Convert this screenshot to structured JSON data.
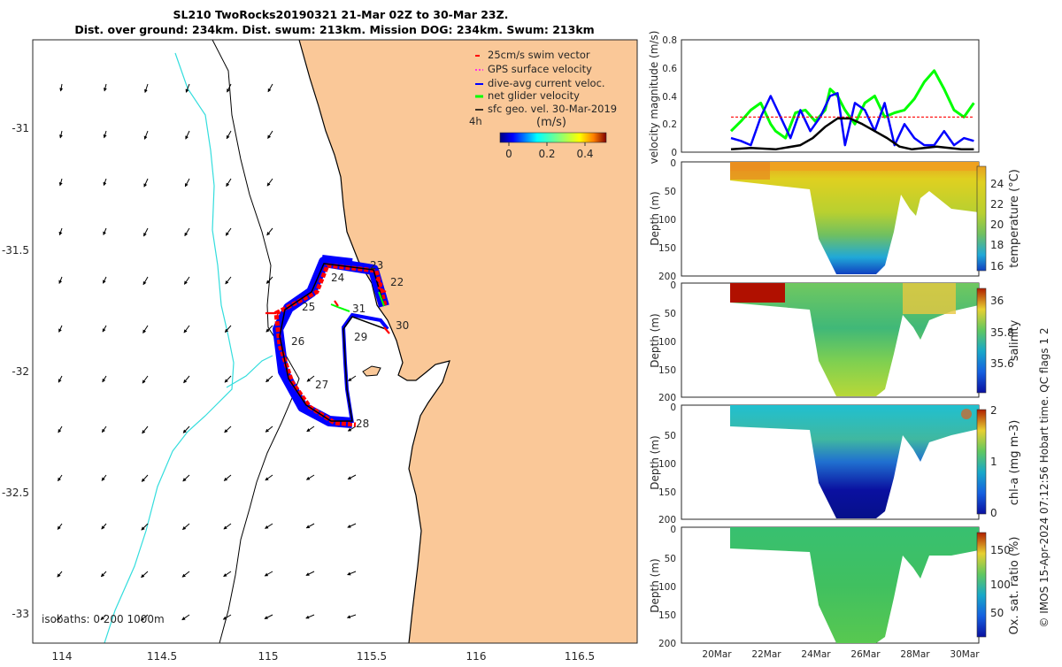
{
  "title": {
    "line1": "SL210 TwoRocks20190321 21-Mar 02Z to 30-Mar 23Z.",
    "line2": "Dist. over ground: 234km. Dist. swum: 213km. Mission DOG: 234km. Swum: 213km"
  },
  "colors": {
    "swim": "#ff0000",
    "gps": "#ff00ff",
    "dive_avg": "#0000ff",
    "net": "#00ff00",
    "geo": "#000000",
    "land": "#fac898",
    "rivers": "#33dddd",
    "track_band": "#0000ff"
  },
  "map": {
    "xticks": [
      "114",
      "114.5",
      "115",
      "115.5",
      "116",
      "116.5"
    ],
    "yticks": [
      "-31",
      "-31.5",
      "-32",
      "-32.5",
      "-33"
    ],
    "legend": [
      {
        "label": "25cm/s swim vector",
        "color": "#ff0000",
        "style": "short"
      },
      {
        "label": "GPS surface velocity",
        "color": "#ff00ff",
        "style": "dash"
      },
      {
        "label": "dive-avg current veloc.",
        "color": "#0000ff",
        "style": "line"
      },
      {
        "label": "net glider velocity",
        "color": "#00ff00",
        "style": "line"
      },
      {
        "label": "sfc geo. vel. 30-Mar-2019",
        "color": "#000000",
        "style": "arrow"
      }
    ],
    "legend_tag": "4h",
    "colorbar_label": "(m/s)",
    "colorbar_ticks": [
      "0",
      "0.2",
      "0.4"
    ],
    "day_labels": [
      "23",
      "24",
      "22",
      "25",
      "31",
      "30",
      "29",
      "26",
      "27",
      "28"
    ],
    "isobaths_label": "isobaths: 0   200 1000m"
  },
  "velocity_panel": {
    "ylabel": "velocity magnitude (m/s)",
    "yticks": [
      "0",
      "0.2",
      "0.4",
      "0.6",
      "0.8"
    ],
    "ylim": [
      0,
      0.8
    ]
  },
  "depth_panels": [
    {
      "name": "temperature",
      "ylabel": "Depth (m)",
      "cbar_label": "temperature (°C)",
      "cbar_ticks": [
        "16",
        "18",
        "20",
        "22",
        "24"
      ],
      "yticks": [
        "0",
        "50",
        "100",
        "150",
        "200"
      ]
    },
    {
      "name": "salinity",
      "ylabel": "Depth (m)",
      "cbar_label": "salinity",
      "cbar_ticks": [
        "35.6",
        "35.8",
        "36"
      ],
      "yticks": [
        "0",
        "50",
        "100",
        "150",
        "200"
      ]
    },
    {
      "name": "chl-a",
      "ylabel": "Depth (m)",
      "cbar_label": "chl-a (mg m-3)",
      "cbar_ticks": [
        "0",
        "1",
        "2"
      ],
      "yticks": [
        "0",
        "50",
        "100",
        "150",
        "200"
      ]
    },
    {
      "name": "oxygen",
      "ylabel": "Depth (m)",
      "cbar_label": "Ox. sat. ratio (%)",
      "cbar_ticks": [
        "50",
        "100",
        "150"
      ],
      "yticks": [
        "0",
        "50",
        "100",
        "150",
        "200"
      ]
    }
  ],
  "time_ticks": [
    "20Mar",
    "22Mar",
    "24Mar",
    "26Mar",
    "28Mar",
    "30Mar"
  ],
  "footer": "© IMOS 15-Apr-2024 07:12:56 Hobart time. QC flags 1  2",
  "chart_data": [
    {
      "type": "line",
      "title": "",
      "ylabel": "velocity magnitude (m/s)",
      "ylim": [
        0,
        0.8
      ],
      "x_units": "day of March 2019",
      "xlim": [
        19.2,
        31.2
      ],
      "x_tick_labels": [
        "20Mar",
        "22Mar",
        "24Mar",
        "26Mar",
        "28Mar",
        "30Mar"
      ],
      "series": [
        {
          "name": "net glider velocity",
          "color": "#00ff00",
          "x": [
            21.2,
            21.6,
            22.0,
            22.4,
            22.8,
            23.0,
            23.4,
            23.8,
            24.2,
            24.6,
            25.0,
            25.2,
            25.5,
            25.8,
            26.2,
            26.6,
            27.0,
            27.4,
            27.8,
            28.2,
            28.6,
            29.0,
            29.4,
            29.8,
            30.2,
            30.6,
            31.0
          ],
          "y": [
            0.15,
            0.22,
            0.3,
            0.35,
            0.2,
            0.15,
            0.1,
            0.28,
            0.3,
            0.22,
            0.3,
            0.45,
            0.4,
            0.3,
            0.2,
            0.35,
            0.4,
            0.25,
            0.28,
            0.3,
            0.38,
            0.5,
            0.58,
            0.45,
            0.3,
            0.25,
            0.35
          ]
        },
        {
          "name": "dive-avg current veloc.",
          "color": "#0000ff",
          "x": [
            21.2,
            21.6,
            22.0,
            22.4,
            22.8,
            23.2,
            23.6,
            24.0,
            24.4,
            24.8,
            25.2,
            25.5,
            25.8,
            26.2,
            26.6,
            27.0,
            27.4,
            27.8,
            28.2,
            28.6,
            29.0,
            29.4,
            29.8,
            30.2,
            30.6,
            31.0
          ],
          "y": [
            0.1,
            0.08,
            0.05,
            0.25,
            0.4,
            0.25,
            0.1,
            0.3,
            0.15,
            0.25,
            0.4,
            0.42,
            0.05,
            0.35,
            0.3,
            0.15,
            0.35,
            0.05,
            0.2,
            0.1,
            0.05,
            0.05,
            0.15,
            0.05,
            0.1,
            0.08
          ]
        },
        {
          "name": "25cm/s swim vector",
          "color": "#ff0000",
          "style": "dashed",
          "x": [
            21.2,
            31.0
          ],
          "y": [
            0.25,
            0.25
          ]
        },
        {
          "name": "sfc geo. vel. 30-Mar-2019",
          "color": "#000000",
          "x": [
            21.2,
            22.0,
            23.0,
            24.0,
            24.5,
            25.0,
            25.5,
            26.0,
            26.5,
            27.0,
            27.5,
            28.0,
            28.5,
            29.0,
            29.5,
            30.0,
            30.5,
            31.0
          ],
          "y": [
            0.02,
            0.03,
            0.02,
            0.05,
            0.1,
            0.18,
            0.24,
            0.24,
            0.2,
            0.15,
            0.1,
            0.04,
            0.02,
            0.03,
            0.04,
            0.03,
            0.02,
            0.02
          ]
        }
      ]
    }
  ]
}
